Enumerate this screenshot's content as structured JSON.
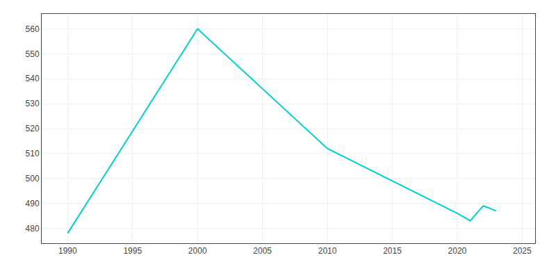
{
  "chart_data": {
    "type": "line",
    "x": [
      1990,
      2000,
      2010,
      2020,
      2021,
      2022,
      2023
    ],
    "values": [
      478,
      560,
      512,
      486,
      483,
      489,
      487
    ],
    "color": "#00CED1",
    "xlim": [
      1988,
      2026
    ],
    "ylim": [
      474,
      566
    ],
    "xticks": [
      1990,
      1995,
      2000,
      2005,
      2010,
      2015,
      2020,
      2025
    ],
    "yticks": [
      480,
      490,
      500,
      510,
      520,
      530,
      540,
      550,
      560
    ],
    "grid": true
  }
}
